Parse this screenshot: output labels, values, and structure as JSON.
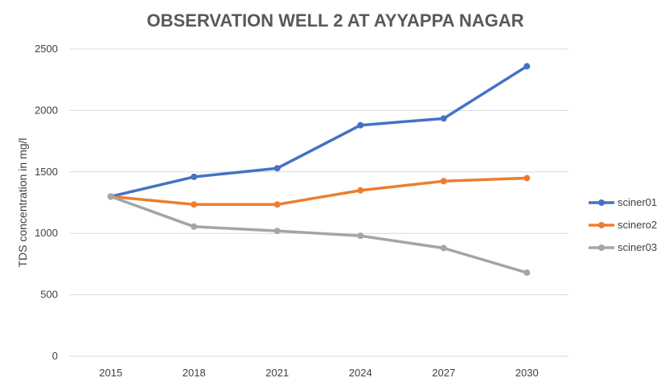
{
  "chart_data": {
    "type": "line",
    "title": "OBSERVATION WELL 2 AT AYYAPPA NAGAR",
    "xlabel": "",
    "ylabel": "TDS concentration in mg/l",
    "categories": [
      "2015",
      "2018",
      "2021",
      "2024",
      "2027",
      "2030"
    ],
    "ylim": [
      0,
      2500
    ],
    "yticks": [
      0,
      500,
      1000,
      1500,
      2000,
      2500
    ],
    "grid": "horizontal",
    "legend_position": "right",
    "series": [
      {
        "name": "sciner01",
        "color": "#4472C4",
        "values": [
          1300,
          1460,
          1530,
          1880,
          1935,
          2360
        ]
      },
      {
        "name": "scinero2",
        "color": "#ED7D31",
        "values": [
          1300,
          1235,
          1235,
          1350,
          1425,
          1450
        ]
      },
      {
        "name": "sciner03",
        "color": "#A5A5A5",
        "values": [
          1300,
          1055,
          1020,
          980,
          880,
          680
        ]
      }
    ]
  }
}
